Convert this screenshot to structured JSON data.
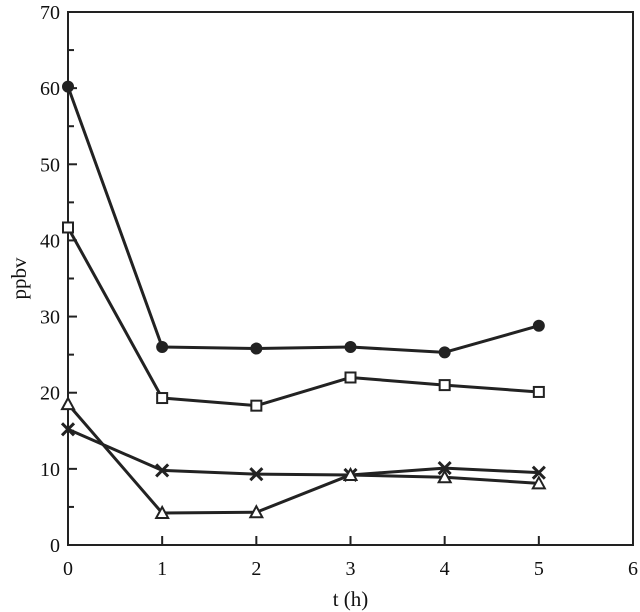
{
  "chart_data": {
    "type": "line",
    "title": "",
    "xlabel": "t (h)",
    "ylabel": "ppbv",
    "xlim": [
      0,
      6
    ],
    "ylim": [
      0,
      70
    ],
    "x_ticks": [
      0,
      1,
      2,
      3,
      4,
      5,
      6
    ],
    "y_ticks": [
      0,
      10,
      20,
      30,
      40,
      50,
      60,
      70
    ],
    "grid": false,
    "legend": "none",
    "x": [
      0,
      1,
      2,
      3,
      4,
      5
    ],
    "series": [
      {
        "marker": "filled-circle",
        "values": [
          60.2,
          26.0,
          25.8,
          26.0,
          25.3,
          28.8
        ]
      },
      {
        "marker": "open-square",
        "values": [
          41.7,
          19.3,
          18.3,
          22.0,
          21.0,
          20.1
        ]
      },
      {
        "marker": "x-cross",
        "values": [
          15.2,
          9.8,
          9.3,
          9.2,
          10.1,
          9.5
        ]
      },
      {
        "marker": "open-triangle",
        "values": [
          18.5,
          4.2,
          4.3,
          9.2,
          8.9,
          8.1
        ]
      }
    ]
  }
}
